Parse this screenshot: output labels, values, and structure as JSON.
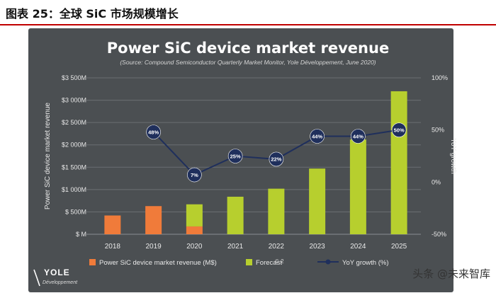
{
  "page": {
    "title": "图表 25：全球 SiC 市场规模增长",
    "watermark": "头条 @未来智库"
  },
  "logo": {
    "brand": "YOLE",
    "sub": "Développement"
  },
  "colors": {
    "panel": "#4b4f52",
    "actual": "#f07b3a",
    "forecast": "#b7cf2e",
    "yoy": "#1f2f5c",
    "text": "#e8e8e8"
  },
  "chart_data": {
    "type": "bar",
    "title": "Power SiC device market revenue",
    "subtitle": "(Source: Compound Semiconductor Quarterly Market Monitor, Yole Développement, June 2020)",
    "ylabel": "Power SiC device market revenue",
    "y2label": "YoY growth",
    "ylim": [
      0,
      3500
    ],
    "yticks": [
      "$ M",
      "$ 500M",
      "$1 000M",
      "$1 500M",
      "$2 000M",
      "$2 500M",
      "$3 000M",
      "$3 500M"
    ],
    "y2lim": [
      -50,
      100
    ],
    "y2ticks": [
      "-50%",
      "0%",
      "50%",
      "100%"
    ],
    "categories": [
      "2018",
      "2019",
      "2020",
      "2021",
      "2022",
      "2023",
      "2024",
      "2025"
    ],
    "series": [
      {
        "name": "Power SiC device market revenue (M$)",
        "values": [
          420,
          630,
          175,
          0,
          0,
          0,
          0,
          0
        ]
      },
      {
        "name": "Forecast",
        "values": [
          0,
          0,
          495,
          840,
          1020,
          1470,
          2120,
          3200
        ]
      },
      {
        "name": "YoY growth (%)",
        "values": [
          null,
          48,
          7,
          25,
          22,
          44,
          44,
          50
        ],
        "labels": [
          "",
          "48%",
          "7%",
          "25%",
          "22%",
          "44%",
          "44%",
          "50%"
        ]
      }
    ],
    "copyright": "© 2"
  }
}
